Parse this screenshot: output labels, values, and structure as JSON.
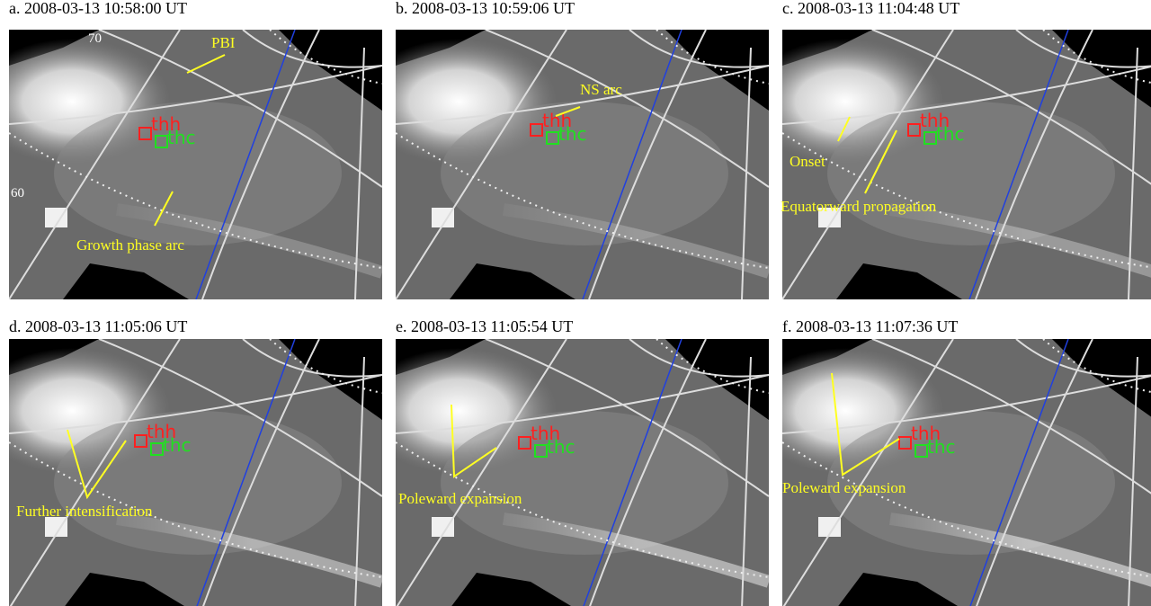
{
  "panels": [
    {
      "title": "a. 2008-03-13 10:58:00 UT",
      "spacecraft": [
        "thh",
        "thc"
      ],
      "annotations": [
        "PBI",
        "Growth phase arc"
      ],
      "latitudes": [
        "70",
        "60"
      ]
    },
    {
      "title": "b. 2008-03-13 10:59:06 UT",
      "spacecraft": [
        "thh",
        "thc"
      ],
      "annotations": [
        "NS arc"
      ]
    },
    {
      "title": "c. 2008-03-13 11:04:48 UT",
      "spacecraft": [
        "thh",
        "thc"
      ],
      "annotations": [
        "Onset",
        "Equatorward propagation"
      ]
    },
    {
      "title": "d. 2008-03-13 11:05:06 UT",
      "spacecraft": [
        "thh",
        "thc"
      ],
      "annotations": [
        "Further intensification"
      ]
    },
    {
      "title": "e. 2008-03-13 11:05:54 UT",
      "spacecraft": [
        "thh",
        "thc"
      ],
      "annotations": [
        "Poleward expansion"
      ]
    },
    {
      "title": "f. 2008-03-13 11:07:36 UT",
      "spacecraft": [
        "thh",
        "thc"
      ],
      "annotations": [
        "Poleward expansion"
      ]
    }
  ]
}
